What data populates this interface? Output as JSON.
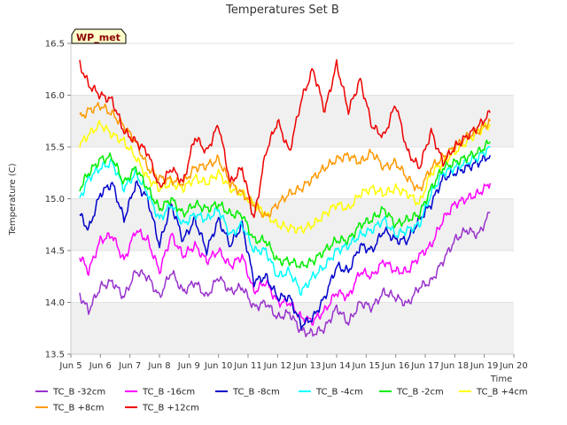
{
  "chart_data": {
    "type": "line",
    "title": "Temperatures Set B",
    "xlabel": "Time",
    "ylabel": "Temperature (C)",
    "badge": "WP_met",
    "xlim": [
      5,
      20
    ],
    "ylim": [
      13.5,
      16.5
    ],
    "x_ticks": [
      {
        "v": 5,
        "label": "Jun 5"
      },
      {
        "v": 6,
        "label": "Jun 6"
      },
      {
        "v": 7,
        "label": "Jun 7"
      },
      {
        "v": 8,
        "label": "Jun 8"
      },
      {
        "v": 9,
        "label": "Jun 9"
      },
      {
        "v": 10,
        "label": "Jun 10"
      },
      {
        "v": 11,
        "label": "Jun 11"
      },
      {
        "v": 12,
        "label": "Jun 12"
      },
      {
        "v": 13,
        "label": "Jun 13"
      },
      {
        "v": 14,
        "label": "Jun 14"
      },
      {
        "v": 15,
        "label": "Jun 15"
      },
      {
        "v": 16,
        "label": "Jun 16"
      },
      {
        "v": 17,
        "label": "Jun 17"
      },
      {
        "v": 18,
        "label": "Jun 18"
      },
      {
        "v": 19,
        "label": "Jun 19"
      },
      {
        "v": 20,
        "label": "Jun 20"
      }
    ],
    "y_ticks": [
      {
        "v": 13.5,
        "label": "13.5"
      },
      {
        "v": 14.0,
        "label": "14.0"
      },
      {
        "v": 14.5,
        "label": "14.5"
      },
      {
        "v": 15.0,
        "label": "15.0"
      },
      {
        "v": 15.5,
        "label": "15.5"
      },
      {
        "v": 16.0,
        "label": "16.0"
      },
      {
        "v": 16.5,
        "label": "16.5"
      }
    ],
    "grid": "horizontal bands",
    "legend_position": "bottom",
    "x": [
      5.3,
      5.6,
      6.0,
      6.4,
      6.8,
      7.2,
      7.6,
      8.0,
      8.4,
      8.8,
      9.2,
      9.6,
      10.0,
      10.4,
      10.8,
      11.2,
      11.6,
      12.0,
      12.4,
      12.8,
      13.2,
      13.6,
      14.0,
      14.4,
      14.8,
      15.2,
      15.6,
      16.0,
      16.4,
      16.8,
      17.2,
      17.6,
      18.0,
      18.4,
      18.8,
      19.2
    ],
    "series": [
      {
        "name": "TC_B -32cm",
        "color": "#9933cc",
        "values": [
          14.07,
          13.92,
          14.15,
          14.2,
          14.05,
          14.3,
          14.25,
          14.05,
          14.3,
          14.1,
          14.2,
          14.05,
          14.25,
          14.1,
          14.15,
          13.95,
          14.0,
          13.85,
          13.9,
          13.72,
          13.7,
          13.75,
          13.95,
          13.8,
          14.0,
          13.95,
          14.1,
          14.05,
          13.98,
          14.15,
          14.2,
          14.4,
          14.6,
          14.7,
          14.65,
          14.87
        ]
      },
      {
        "name": "TC_B -16cm",
        "color": "#ff00ff",
        "values": [
          14.45,
          14.3,
          14.6,
          14.65,
          14.4,
          14.7,
          14.6,
          14.3,
          14.65,
          14.45,
          14.55,
          14.4,
          14.5,
          14.35,
          14.45,
          14.1,
          14.2,
          14.0,
          14.0,
          13.85,
          13.82,
          13.92,
          14.1,
          14.05,
          14.3,
          14.25,
          14.4,
          14.3,
          14.3,
          14.45,
          14.55,
          14.8,
          14.95,
          15.0,
          15.05,
          15.15
        ]
      },
      {
        "name": "TC_B -8cm",
        "color": "#0000cc",
        "values": [
          14.85,
          14.7,
          15.05,
          15.15,
          14.8,
          15.15,
          15.0,
          14.55,
          14.95,
          14.6,
          14.8,
          14.5,
          14.8,
          14.55,
          14.75,
          14.2,
          14.25,
          14.05,
          14.05,
          13.78,
          13.85,
          14.05,
          14.35,
          14.3,
          14.55,
          14.5,
          14.7,
          14.6,
          14.6,
          14.8,
          14.95,
          15.2,
          15.25,
          15.3,
          15.35,
          15.42
        ]
      },
      {
        "name": "TC_B -4cm",
        "color": "#00ffff",
        "values": [
          15.0,
          15.2,
          15.3,
          15.35,
          15.1,
          15.25,
          15.05,
          14.8,
          14.95,
          14.75,
          14.85,
          14.8,
          14.9,
          14.65,
          14.75,
          14.5,
          14.5,
          14.25,
          14.3,
          14.1,
          14.25,
          14.35,
          14.5,
          14.55,
          14.65,
          14.7,
          14.8,
          14.65,
          14.7,
          14.75,
          15.05,
          15.25,
          15.3,
          15.35,
          15.4,
          15.5
        ]
      },
      {
        "name": "TC_B -2cm",
        "color": "#00ee00",
        "values": [
          15.1,
          15.25,
          15.38,
          15.4,
          15.15,
          15.3,
          15.1,
          14.9,
          15.0,
          14.85,
          14.95,
          14.9,
          14.95,
          14.85,
          14.85,
          14.6,
          14.6,
          14.4,
          14.4,
          14.35,
          14.4,
          14.5,
          14.6,
          14.6,
          14.75,
          14.8,
          14.9,
          14.75,
          14.8,
          14.85,
          15.1,
          15.3,
          15.35,
          15.4,
          15.45,
          15.55
        ]
      },
      {
        "name": "TC_B +4cm",
        "color": "#ffff00",
        "values": [
          15.52,
          15.62,
          15.72,
          15.62,
          15.55,
          15.4,
          15.2,
          15.1,
          15.15,
          15.1,
          15.2,
          15.15,
          15.25,
          15.1,
          15.05,
          14.95,
          14.85,
          14.75,
          14.72,
          14.7,
          14.75,
          14.85,
          14.95,
          14.9,
          15.05,
          15.1,
          15.05,
          15.1,
          15.05,
          14.95,
          15.25,
          15.35,
          15.45,
          15.55,
          15.65,
          15.72
        ]
      },
      {
        "name": "TC_B +8cm",
        "color": "#ff9900",
        "values": [
          15.78,
          15.85,
          15.9,
          15.82,
          15.7,
          15.55,
          15.3,
          15.2,
          15.18,
          15.15,
          15.3,
          15.32,
          15.38,
          15.15,
          15.05,
          14.95,
          14.82,
          14.95,
          15.05,
          15.1,
          15.2,
          15.3,
          15.38,
          15.42,
          15.35,
          15.45,
          15.3,
          15.35,
          15.2,
          15.08,
          15.3,
          15.4,
          15.5,
          15.6,
          15.65,
          15.75
        ]
      },
      {
        "name": "TC_B +12cm",
        "color": "#ee0000",
        "values": [
          16.3,
          16.1,
          16.0,
          15.95,
          15.65,
          15.55,
          15.45,
          15.1,
          15.3,
          15.15,
          15.6,
          15.45,
          15.72,
          15.15,
          15.3,
          14.8,
          15.45,
          15.75,
          15.45,
          15.95,
          16.25,
          15.85,
          16.3,
          15.85,
          16.15,
          15.7,
          15.6,
          15.92,
          15.45,
          15.3,
          15.65,
          15.35,
          15.5,
          15.6,
          15.7,
          15.83
        ]
      }
    ]
  }
}
